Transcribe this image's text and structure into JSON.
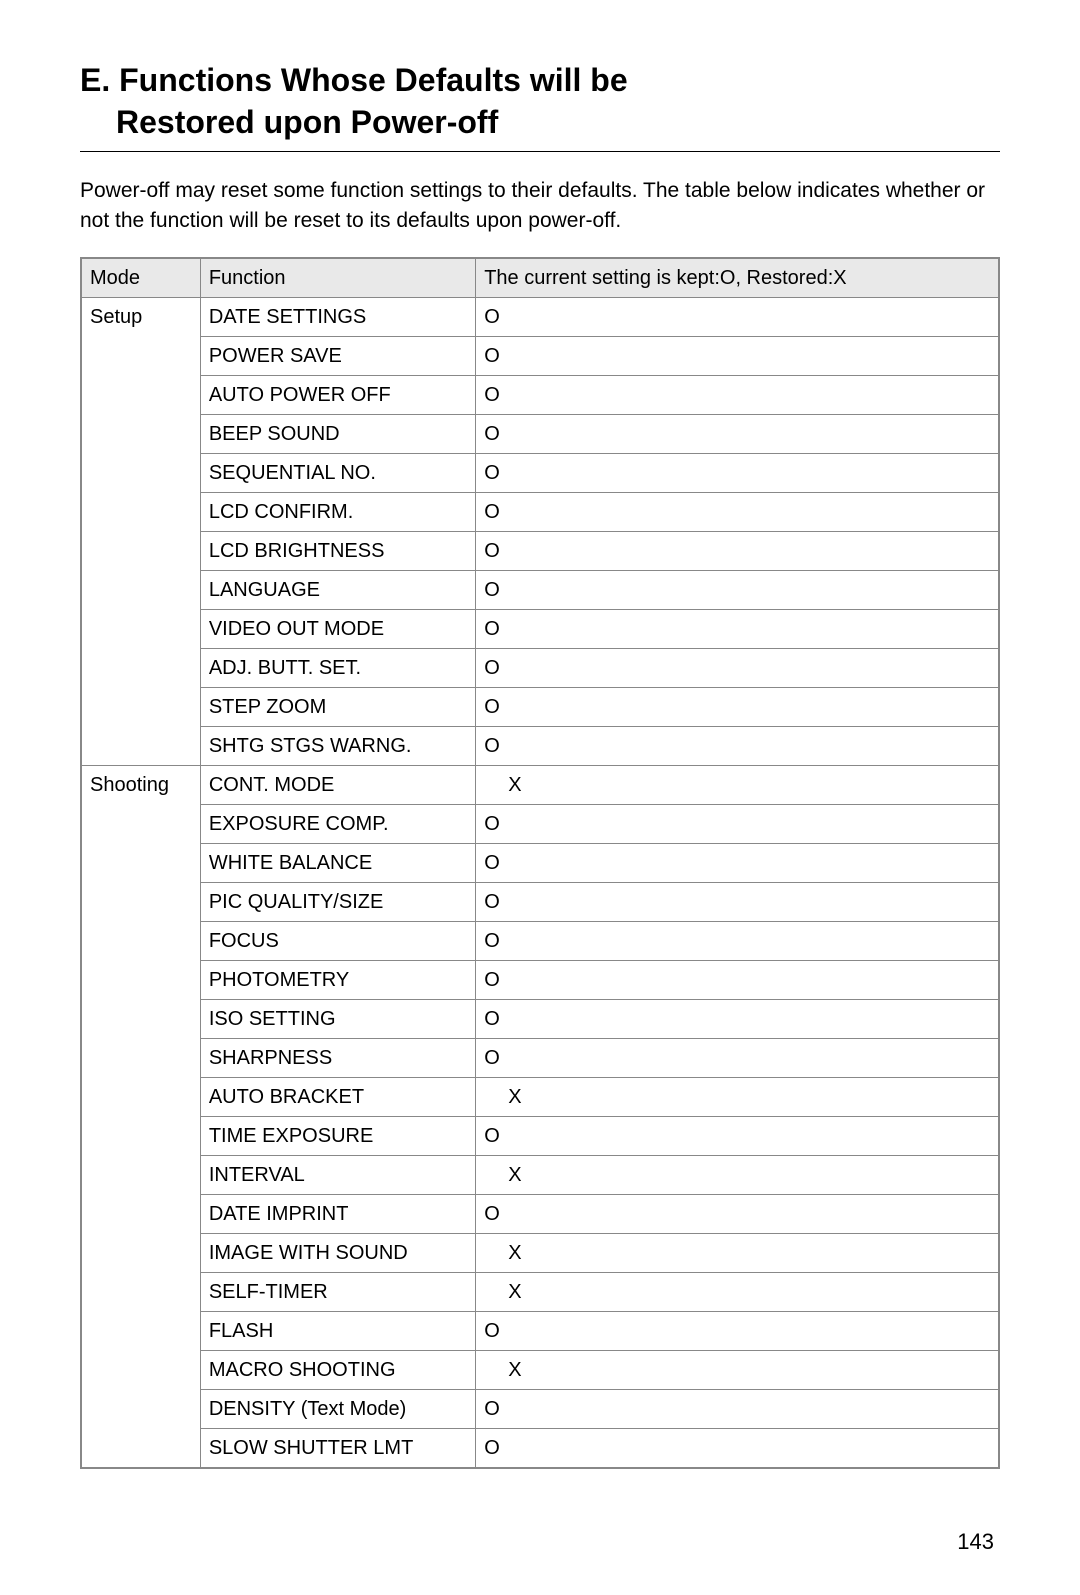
{
  "title_line1": "E. Functions Whose Defaults will be",
  "title_line2": "Restored upon Power-off",
  "intro": "Power-off may reset some function settings to their defaults. The table below indicates whether or not the function will be reset to its defaults upon power-off.",
  "table": {
    "header": {
      "mode": "Mode",
      "function": "Function",
      "status": "The current setting is kept:O, Restored:X"
    },
    "sections": [
      {
        "mode": "Setup",
        "rows": [
          {
            "function": "DATE SETTINGS",
            "status": "O",
            "indent": false
          },
          {
            "function": "POWER SAVE",
            "status": "O",
            "indent": false
          },
          {
            "function": "AUTO POWER OFF",
            "status": "O",
            "indent": false
          },
          {
            "function": "BEEP SOUND",
            "status": "O",
            "indent": false
          },
          {
            "function": "SEQUENTIAL NO.",
            "status": "O",
            "indent": false
          },
          {
            "function": "LCD CONFIRM.",
            "status": "O",
            "indent": false
          },
          {
            "function": "LCD BRIGHTNESS",
            "status": "O",
            "indent": false
          },
          {
            "function": "LANGUAGE",
            "status": "O",
            "indent": false
          },
          {
            "function": "VIDEO OUT MODE",
            "status": "O",
            "indent": false
          },
          {
            "function": "ADJ. BUTT. SET.",
            "status": "O",
            "indent": false
          },
          {
            "function": "STEP ZOOM",
            "status": "O",
            "indent": false
          },
          {
            "function": "SHTG STGS WARNG.",
            "status": "O",
            "indent": false
          }
        ]
      },
      {
        "mode": "Shooting",
        "rows": [
          {
            "function": "CONT. MODE",
            "status": "X",
            "indent": true
          },
          {
            "function": "EXPOSURE COMP.",
            "status": "O",
            "indent": false
          },
          {
            "function": "WHITE BALANCE",
            "status": "O",
            "indent": false
          },
          {
            "function": "PIC QUALITY/SIZE",
            "status": "O",
            "indent": false
          },
          {
            "function": "FOCUS",
            "status": "O",
            "indent": false
          },
          {
            "function": "PHOTOMETRY",
            "status": "O",
            "indent": false
          },
          {
            "function": "ISO SETTING",
            "status": "O",
            "indent": false
          },
          {
            "function": "SHARPNESS",
            "status": "O",
            "indent": false
          },
          {
            "function": "AUTO BRACKET",
            "status": "X",
            "indent": true
          },
          {
            "function": "TIME EXPOSURE",
            "status": "O",
            "indent": false
          },
          {
            "function": "INTERVAL",
            "status": "X",
            "indent": true
          },
          {
            "function": "DATE IMPRINT",
            "status": "O",
            "indent": false
          },
          {
            "function": "IMAGE WITH SOUND",
            "status": "X",
            "indent": true
          },
          {
            "function": "SELF-TIMER",
            "status": "X",
            "indent": true
          },
          {
            "function": "FLASH",
            "status": "O",
            "indent": false
          },
          {
            "function": "MACRO SHOOTING",
            "status": "X",
            "indent": true
          },
          {
            "function": "DENSITY (Text Mode)",
            "status": "O",
            "indent": false
          },
          {
            "function": "SLOW SHUTTER LMT",
            "status": "O",
            "indent": false
          }
        ]
      }
    ]
  },
  "page_number": "143",
  "colors": {
    "background": "#ffffff",
    "text": "#000000",
    "table_border": "#888888",
    "header_bg": "#e9e9e9"
  }
}
